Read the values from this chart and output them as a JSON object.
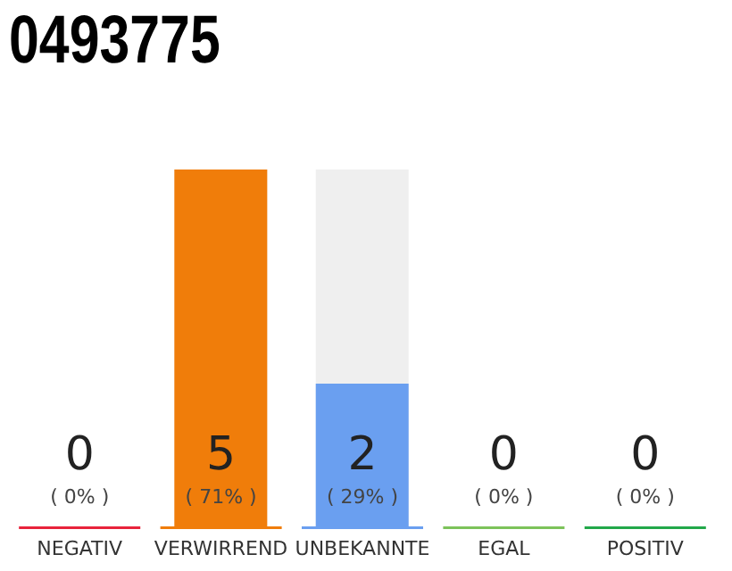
{
  "chart_data": {
    "type": "bar",
    "title": "0493775",
    "categories": [
      "NEGATIV",
      "VERWIRREND",
      "UNBEKANNTE",
      "EGAL",
      "POSITIV"
    ],
    "values": [
      0,
      5,
      2,
      0,
      0
    ],
    "colors": [
      "#e8243c",
      "#f07d0a",
      "#6a9ff0",
      "#7cc35a",
      "#22a84a"
    ],
    "value_labels": [
      "0\n( 0% )",
      "5\n( 71% )",
      "2\n( 29% )",
      "0\n( 0% )",
      "0\n( 0% )"
    ]
  }
}
